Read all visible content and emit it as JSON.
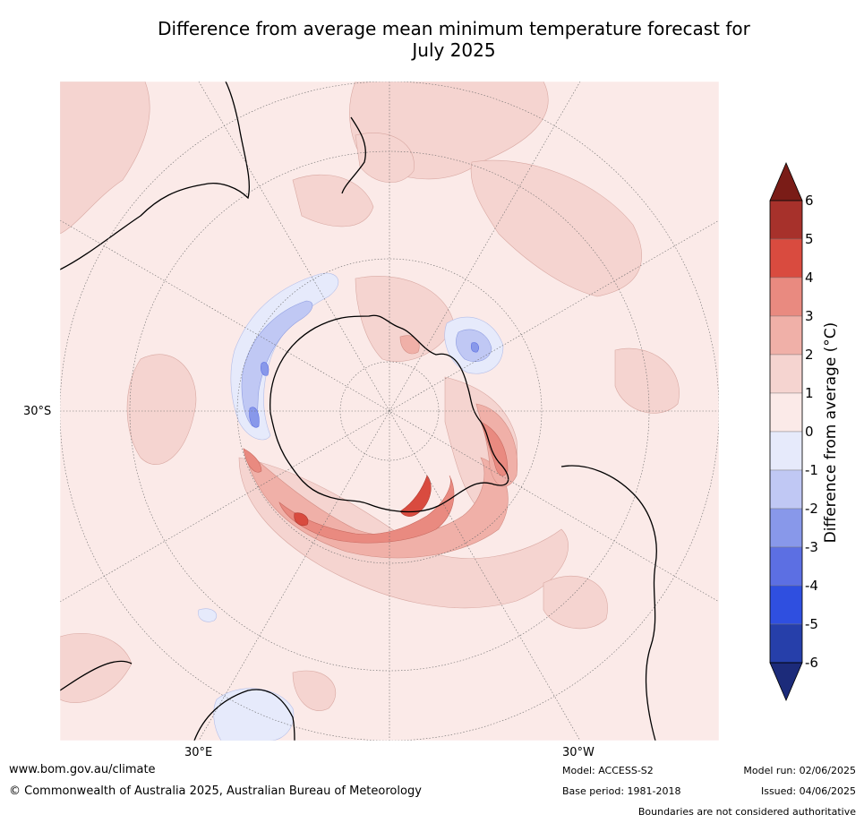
{
  "title": "Difference from average mean minimum temperature forecast for July 2025",
  "title_line1": "Difference from average mean minimum temperature forecast for",
  "title_line2": "July 2025",
  "axes": {
    "lat_label": "30°S",
    "lon_left": "30°E",
    "lon_right": "30°W"
  },
  "colorbar": {
    "label": "Difference from average (°C)",
    "ticks": [
      "6",
      "5",
      "4",
      "3",
      "2",
      "1",
      "0",
      "-1",
      "-2",
      "-3",
      "-4",
      "-5",
      "-6"
    ],
    "colors": [
      "#a7312b",
      "#d94b3f",
      "#e98a80",
      "#f0b0a8",
      "#f5d4d0",
      "#fbeae8",
      "#e6eafb",
      "#c0c8f4",
      "#8898ea",
      "#5c6fe3",
      "#2f4fe0",
      "#263faa"
    ],
    "over_color": "#7a1c17",
    "under_color": "#1c2b7a"
  },
  "footer": {
    "website": "www.bom.gov.au/climate",
    "copyright": "© Commonwealth of Australia 2025, Australian Bureau of Meteorology",
    "model": "Model: ACCESS-S2",
    "base_period": "Base period: 1981-2018",
    "model_run": "Model run: 02/06/2025",
    "issued": "Issued: 04/06/2025",
    "disclaimer": "Boundaries are not considered authoritative"
  }
}
